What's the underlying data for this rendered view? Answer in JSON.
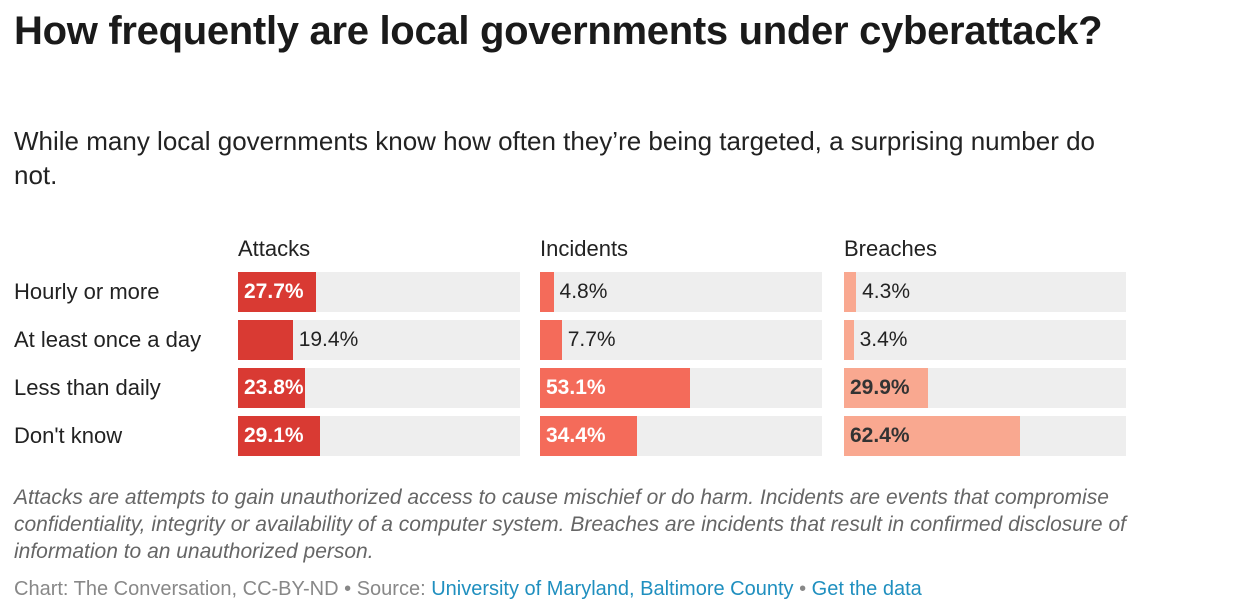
{
  "title": "How frequently are local governments under cyberattack?",
  "subtitle": "While many local governments know how often they’re being targeted, a surprising number do not.",
  "chart_data": {
    "type": "bar",
    "orientation": "horizontal",
    "layout": "small-multiples",
    "value_max": 100,
    "categories": [
      "Hourly or more",
      "At least once a day",
      "Less than daily",
      "Don't know"
    ],
    "series": [
      {
        "name": "Attacks",
        "color": "#d93a33",
        "values": [
          27.7,
          19.4,
          23.8,
          29.1
        ],
        "labels": [
          "27.7%",
          "19.4%",
          "23.8%",
          "29.1%"
        ]
      },
      {
        "name": "Incidents",
        "color": "#f46b5a",
        "values": [
          4.8,
          7.7,
          53.1,
          34.4
        ],
        "labels": [
          "4.8%",
          "7.7%",
          "53.1%",
          "34.4%"
        ]
      },
      {
        "name": "Breaches",
        "color": "#f9a890",
        "values": [
          4.3,
          3.4,
          29.9,
          62.4
        ],
        "labels": [
          "4.3%",
          "3.4%",
          "29.9%",
          "62.4%"
        ]
      }
    ],
    "track_color": "#eeeeee"
  },
  "notes": "Attacks are attempts to gain unauthorized access to cause mischief or do harm. Incidents are events that compromise confidentiality, integrity or availability of a computer system. Breaches are incidents that result in confirmed disclosure of information to an unauthorized person.",
  "footer": {
    "credit": "Chart: The Conversation, CC-BY-ND",
    "separator": " • ",
    "source_label": "Source: ",
    "source_link": "University of Maryland, Baltimore County",
    "data_link": "Get the data"
  }
}
